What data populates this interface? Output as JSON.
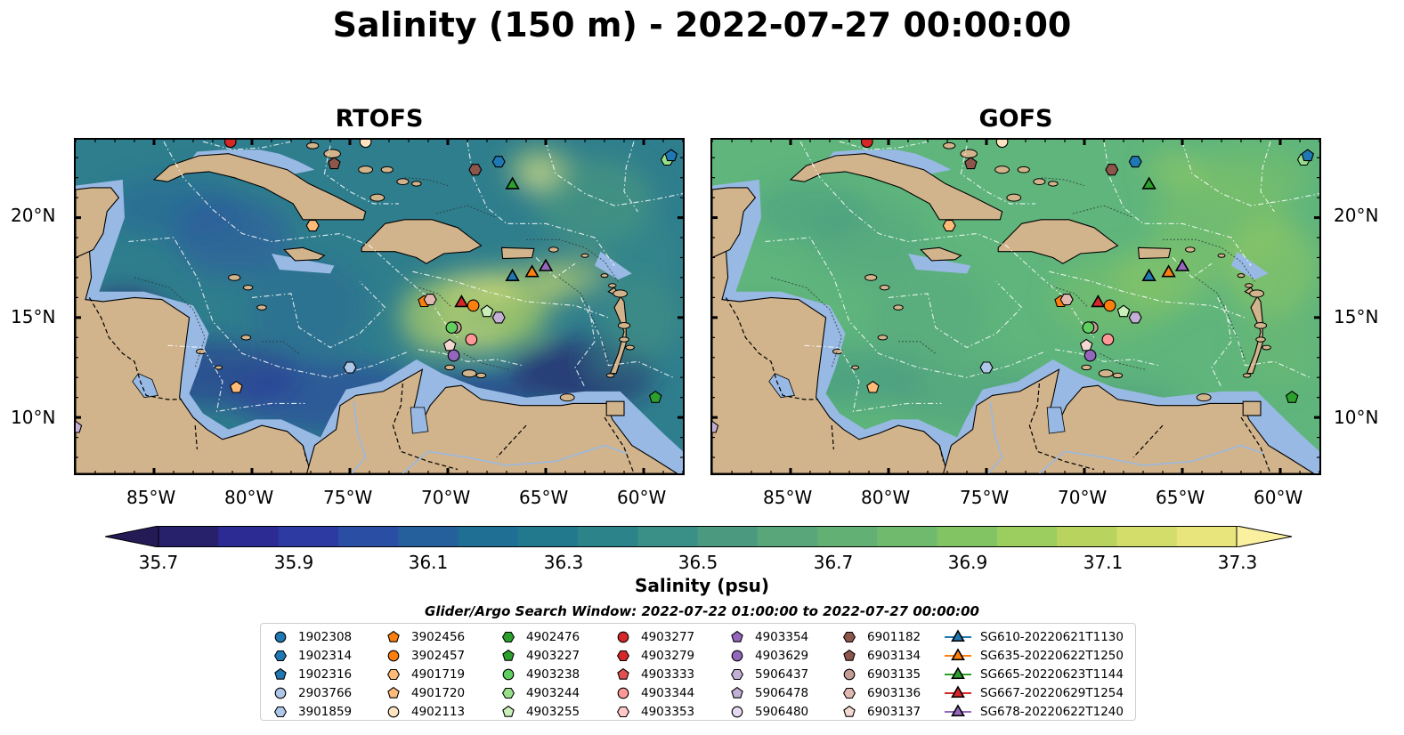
{
  "title": "Salinity (150 m) - 2022-07-27 00:00:00",
  "panels": [
    {
      "title": "RTOFS",
      "bg": "#2f7e8d"
    },
    {
      "title": "GOFS",
      "bg": "#5fb57c"
    }
  ],
  "axes": {
    "x_ticks": [
      "85°W",
      "80°W",
      "75°W",
      "70°W",
      "65°W",
      "60°W"
    ],
    "y_ticks": [
      "20°N",
      "15°N",
      "10°N"
    ]
  },
  "colorbar": {
    "label": "Salinity (psu)",
    "ticks": [
      "35.7",
      "35.9",
      "36.1",
      "36.3",
      "36.5",
      "36.7",
      "36.9",
      "37.1",
      "37.3"
    ],
    "colors": [
      "#27206b",
      "#2c2a93",
      "#2d3aa1",
      "#2a4ea3",
      "#255f9c",
      "#1f6e94",
      "#22798d",
      "#2c838a",
      "#3a8f86",
      "#4b9a80",
      "#58a67a",
      "#63b074",
      "#70ba6d",
      "#82c464",
      "#9ccd5f",
      "#b8d45f",
      "#d2dd6a",
      "#e8e57c"
    ],
    "under_color": "#241a55",
    "over_color": "#fbf0a0"
  },
  "search_window": "Glider/Argo Search Window: 2022-07-22 01:00:00 to 2022-07-27 00:00:00",
  "legend": [
    [
      {
        "label": "1902308",
        "marker": "circle",
        "color": "#1f77b4"
      },
      {
        "label": "1902314",
        "marker": "hexagon",
        "color": "#1f77b4"
      },
      {
        "label": "1902316",
        "marker": "pentagon",
        "color": "#1f77b4"
      },
      {
        "label": "2903766",
        "marker": "circle",
        "color": "#aec7e8"
      },
      {
        "label": "3901859",
        "marker": "hexagon",
        "color": "#aec7e8"
      }
    ],
    [
      {
        "label": "3902456",
        "marker": "pentagon",
        "color": "#ff7f0e"
      },
      {
        "label": "3902457",
        "marker": "circle",
        "color": "#ff7f0e"
      },
      {
        "label": "4901719",
        "marker": "hexagon",
        "color": "#ffbb78"
      },
      {
        "label": "4901720",
        "marker": "pentagon",
        "color": "#ffbb78"
      },
      {
        "label": "4902113",
        "marker": "circle",
        "color": "#ffe4c0"
      }
    ],
    [
      {
        "label": "4902476",
        "marker": "hexagon",
        "color": "#2ca02c"
      },
      {
        "label": "4903227",
        "marker": "pentagon",
        "color": "#2ca02c"
      },
      {
        "label": "4903238",
        "marker": "circle",
        "color": "#5fcf5f"
      },
      {
        "label": "4903244",
        "marker": "hexagon",
        "color": "#98df8a"
      },
      {
        "label": "4903255",
        "marker": "pentagon",
        "color": "#c8f0b8"
      }
    ],
    [
      {
        "label": "4903277",
        "marker": "circle",
        "color": "#d62728"
      },
      {
        "label": "4903279",
        "marker": "hexagon",
        "color": "#d62728"
      },
      {
        "label": "4903333",
        "marker": "pentagon",
        "color": "#e05050"
      },
      {
        "label": "4903344",
        "marker": "circle",
        "color": "#ff9896"
      },
      {
        "label": "4903353",
        "marker": "hexagon",
        "color": "#ffc8c6"
      }
    ],
    [
      {
        "label": "4903354",
        "marker": "pentagon",
        "color": "#9467bd"
      },
      {
        "label": "4903629",
        "marker": "circle",
        "color": "#9467bd"
      },
      {
        "label": "5906437",
        "marker": "hexagon",
        "color": "#c5b0d5"
      },
      {
        "label": "5906478",
        "marker": "pentagon",
        "color": "#c5b0d5"
      },
      {
        "label": "5906480",
        "marker": "circle",
        "color": "#e6d8f0"
      }
    ],
    [
      {
        "label": "6901182",
        "marker": "hexagon",
        "color": "#8c564b"
      },
      {
        "label": "6903134",
        "marker": "pentagon",
        "color": "#8c564b"
      },
      {
        "label": "6903135",
        "marker": "circle",
        "color": "#c49c94"
      },
      {
        "label": "6903136",
        "marker": "hexagon",
        "color": "#e0b8b0"
      },
      {
        "label": "6903137",
        "marker": "pentagon",
        "color": "#f4d8d2"
      }
    ],
    [
      {
        "label": "SG610-20220621T1130",
        "marker": "triangle-line",
        "color": "#1f77b4"
      },
      {
        "label": "SG635-20220622T1250",
        "marker": "triangle-line",
        "color": "#ff7f0e"
      },
      {
        "label": "SG665-20220623T1144",
        "marker": "triangle-line",
        "color": "#2ca02c"
      },
      {
        "label": "SG667-20220629T1254",
        "marker": "triangle-line",
        "color": "#d62728"
      },
      {
        "label": "SG678-20220622T1240",
        "marker": "triangle-line",
        "color": "#9467bd"
      }
    ]
  ],
  "observations": [
    {
      "id": "4903277",
      "lon": -81.1,
      "lat": 23.8
    },
    {
      "id": "6903134",
      "lon": -75.8,
      "lat": 22.7
    },
    {
      "id": "4902113",
      "lon": -74.2,
      "lat": 23.8
    },
    {
      "id": "6901182",
      "lon": -68.6,
      "lat": 22.4
    },
    {
      "id": "1902314",
      "lon": -67.4,
      "lat": 22.8
    },
    {
      "id": "SG665-20220623T1144",
      "lon": -66.7,
      "lat": 21.7
    },
    {
      "id": "4903244",
      "lon": -58.8,
      "lat": 22.9
    },
    {
      "id": "1902316",
      "lon": -58.6,
      "lat": 23.1
    },
    {
      "id": "4901719",
      "lon": -76.9,
      "lat": 19.6
    },
    {
      "id": "SG610-20220621T1130",
      "lon": -66.7,
      "lat": 17.1
    },
    {
      "id": "SG635-20220622T1250",
      "lon": -65.7,
      "lat": 17.3
    },
    {
      "id": "SG678-20220622T1240",
      "lon": -65.0,
      "lat": 17.6
    },
    {
      "id": "3902456",
      "lon": -71.2,
      "lat": 15.8
    },
    {
      "id": "6903136",
      "lon": -70.9,
      "lat": 15.9
    },
    {
      "id": "SG667-20220629T1254",
      "lon": -69.3,
      "lat": 15.8
    },
    {
      "id": "3902457",
      "lon": -68.7,
      "lat": 15.6
    },
    {
      "id": "4903255",
      "lon": -68.0,
      "lat": 15.3
    },
    {
      "id": "5906437",
      "lon": -67.4,
      "lat": 15.0
    },
    {
      "id": "6903135",
      "lon": -69.6,
      "lat": 14.5
    },
    {
      "id": "4903238",
      "lon": -69.8,
      "lat": 14.5
    },
    {
      "id": "6903137",
      "lon": -69.9,
      "lat": 13.6
    },
    {
      "id": "4903344",
      "lon": -68.8,
      "lat": 13.9
    },
    {
      "id": "4903629",
      "lon": -69.7,
      "lat": 13.1
    },
    {
      "id": "3901859",
      "lon": -75.0,
      "lat": 12.5
    },
    {
      "id": "4901720",
      "lon": -80.8,
      "lat": 11.5
    },
    {
      "id": "4903227",
      "lon": -59.4,
      "lat": 11.0
    },
    {
      "id": "5906478",
      "lon": -89.0,
      "lat": 9.5
    }
  ]
}
